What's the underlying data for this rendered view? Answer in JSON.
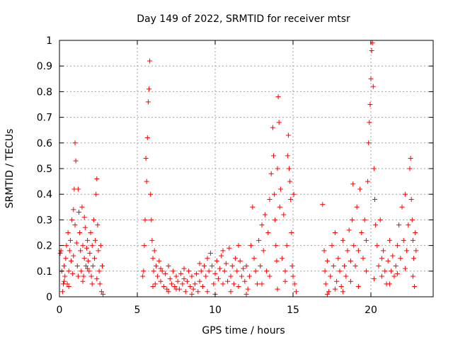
{
  "chart_data": {
    "type": "scatter",
    "title": "Day 149 of 2022, SRMTID for receiver mtsr",
    "xlabel": "GPS time / hours",
    "ylabel": "SRMTID / TECUs",
    "xlim": [
      0,
      24
    ],
    "ylim": [
      0,
      1
    ],
    "xticks": [
      0,
      5,
      10,
      15,
      20
    ],
    "xtick_labels": [
      "0",
      "5",
      "10",
      "15",
      "20"
    ],
    "yticks": [
      0,
      0.1,
      0.2,
      0.3,
      0.4,
      0.5,
      0.6,
      0.7,
      0.8,
      0.9,
      1
    ],
    "ytick_labels": [
      "0",
      "0.1",
      "0.2",
      "0.3",
      "0.4",
      "0.5",
      "0.6",
      "0.7",
      "0.8",
      "0.9",
      "1"
    ],
    "grid": true,
    "marker": "+",
    "color": "#ff0000",
    "series": [
      {
        "name": "SRMTID",
        "points": [
          [
            0.05,
            0.17
          ],
          [
            0.1,
            0.18
          ],
          [
            0.15,
            0.1
          ],
          [
            0.2,
            0.02
          ],
          [
            0.25,
            0.05
          ],
          [
            0.3,
            0.12
          ],
          [
            0.35,
            0.08
          ],
          [
            0.4,
            0.15
          ],
          [
            0.45,
            0.2
          ],
          [
            0.5,
            0.05
          ],
          [
            0.55,
            0.25
          ],
          [
            0.6,
            0.1
          ],
          [
            0.65,
            0.18
          ],
          [
            0.7,
            0.22
          ],
          [
            0.75,
            0.14
          ],
          [
            0.8,
            0.3
          ],
          [
            0.85,
            0.09
          ],
          [
            0.9,
            0.34
          ],
          [
            0.95,
            0.42
          ],
          [
            1.0,
            0.6
          ],
          [
            1.05,
            0.53
          ],
          [
            1.1,
            0.21
          ],
          [
            1.15,
            0.12
          ],
          [
            1.2,
            0.42
          ],
          [
            1.25,
            0.33
          ],
          [
            1.3,
            0.25
          ],
          [
            1.35,
            0.18
          ],
          [
            1.4,
            0.1
          ],
          [
            1.45,
            0.35
          ],
          [
            1.5,
            0.2
          ],
          [
            1.55,
            0.08
          ],
          [
            1.6,
            0.15
          ],
          [
            1.65,
            0.27
          ],
          [
            1.7,
            0.12
          ],
          [
            1.75,
            0.19
          ],
          [
            1.8,
            0.22
          ],
          [
            1.85,
            0.14
          ],
          [
            1.9,
            0.1
          ],
          [
            1.95,
            0.17
          ],
          [
            2.0,
            0.25
          ],
          [
            2.05,
            0.08
          ],
          [
            2.1,
            0.2
          ],
          [
            2.15,
            0.12
          ],
          [
            2.2,
            0.3
          ],
          [
            2.25,
            0.15
          ],
          [
            2.3,
            0.22
          ],
          [
            2.35,
            0.4
          ],
          [
            2.4,
            0.46
          ],
          [
            2.45,
            0.28
          ],
          [
            2.5,
            0.18
          ],
          [
            2.55,
            0.1
          ],
          [
            2.6,
            0.05
          ],
          [
            2.65,
            0.2
          ],
          [
            2.7,
            0.02
          ],
          [
            2.75,
            0.12
          ],
          [
            2.8,
            0.01
          ],
          [
            0.3,
            0.06
          ],
          [
            0.6,
            0.04
          ],
          [
            0.9,
            0.16
          ],
          [
            1.2,
            0.08
          ],
          [
            1.5,
            0.06
          ],
          [
            1.8,
            0.11
          ],
          [
            2.1,
            0.05
          ],
          [
            2.4,
            0.07
          ],
          [
            1.0,
            0.28
          ],
          [
            1.6,
            0.31
          ],
          [
            5.35,
            0.08
          ],
          [
            5.4,
            0.1
          ],
          [
            5.45,
            0.2
          ],
          [
            5.5,
            0.3
          ],
          [
            5.55,
            0.54
          ],
          [
            5.6,
            0.45
          ],
          [
            5.65,
            0.62
          ],
          [
            5.7,
            0.76
          ],
          [
            5.75,
            0.81
          ],
          [
            5.8,
            0.92
          ],
          [
            5.85,
            0.4
          ],
          [
            5.9,
            0.3
          ],
          [
            5.95,
            0.22
          ],
          [
            6.0,
            0.15
          ],
          [
            6.05,
            0.1
          ],
          [
            6.1,
            0.18
          ],
          [
            6.15,
            0.05
          ],
          [
            6.2,
            0.12
          ],
          [
            6.3,
            0.08
          ],
          [
            6.4,
            0.14
          ],
          [
            6.5,
            0.06
          ],
          [
            6.6,
            0.1
          ],
          [
            6.7,
            0.04
          ],
          [
            6.8,
            0.09
          ],
          [
            6.9,
            0.03
          ],
          [
            7.0,
            0.12
          ],
          [
            7.1,
            0.07
          ],
          [
            7.2,
            0.05
          ],
          [
            7.3,
            0.1
          ],
          [
            7.4,
            0.04
          ],
          [
            7.5,
            0.08
          ],
          [
            7.6,
            0.06
          ],
          [
            7.7,
            0.03
          ],
          [
            7.8,
            0.09
          ],
          [
            7.9,
            0.05
          ],
          [
            8.0,
            0.07
          ],
          [
            8.1,
            0.02
          ],
          [
            8.2,
            0.06
          ],
          [
            8.3,
            0.1
          ],
          [
            8.4,
            0.04
          ],
          [
            8.5,
            0.08
          ],
          [
            8.6,
            0.03
          ],
          [
            8.7,
            0.05
          ],
          [
            8.8,
            0.09
          ],
          [
            8.9,
            0.02
          ],
          [
            9.0,
            0.06
          ],
          [
            9.1,
            0.1
          ],
          [
            9.2,
            0.04
          ],
          [
            9.3,
            0.12
          ],
          [
            9.4,
            0.08
          ],
          [
            9.5,
            0.15
          ],
          [
            9.6,
            0.1
          ],
          [
            9.7,
            0.17
          ],
          [
            9.8,
            0.12
          ],
          [
            9.9,
            0.05
          ],
          [
            10.0,
            0.09
          ],
          [
            10.1,
            0.14
          ],
          [
            10.2,
            0.07
          ],
          [
            10.3,
            0.11
          ],
          [
            10.4,
            0.16
          ],
          [
            10.5,
            0.05
          ],
          [
            10.6,
            0.1
          ],
          [
            10.7,
            0.13
          ],
          [
            10.8,
            0.06
          ],
          [
            10.9,
            0.19
          ],
          [
            11.0,
            0.08
          ],
          [
            11.1,
            0.12
          ],
          [
            11.2,
            0.05
          ],
          [
            11.3,
            0.15
          ],
          [
            11.4,
            0.1
          ],
          [
            11.5,
            0.04
          ],
          [
            11.6,
            0.14
          ],
          [
            11.7,
            0.08
          ],
          [
            11.8,
            0.11
          ],
          [
            11.9,
            0.06
          ],
          [
            12.0,
            0.12
          ],
          [
            12.1,
            0.03
          ],
          [
            12.2,
            0.08
          ],
          [
            12.3,
            0.2
          ],
          [
            12.4,
            0.35
          ],
          [
            12.5,
            0.15
          ],
          [
            12.6,
            0.1
          ],
          [
            12.7,
            0.05
          ],
          [
            12.8,
            0.22
          ],
          [
            12.9,
            0.12
          ],
          [
            13.0,
            0.28
          ],
          [
            13.1,
            0.18
          ],
          [
            13.2,
            0.32
          ],
          [
            13.3,
            0.1
          ],
          [
            13.4,
            0.25
          ],
          [
            13.5,
            0.38
          ],
          [
            13.6,
            0.48
          ],
          [
            13.7,
            0.66
          ],
          [
            13.75,
            0.55
          ],
          [
            13.8,
            0.4
          ],
          [
            13.85,
            0.3
          ],
          [
            13.9,
            0.2
          ],
          [
            13.95,
            0.14
          ],
          [
            14.0,
            0.5
          ],
          [
            14.05,
            0.78
          ],
          [
            14.1,
            0.68
          ],
          [
            14.15,
            0.35
          ],
          [
            14.2,
            0.42
          ],
          [
            14.3,
            0.15
          ],
          [
            14.4,
            0.32
          ],
          [
            14.5,
            0.1
          ],
          [
            14.6,
            0.2
          ],
          [
            14.65,
            0.55
          ],
          [
            14.7,
            0.63
          ],
          [
            14.75,
            0.5
          ],
          [
            14.8,
            0.45
          ],
          [
            14.85,
            0.38
          ],
          [
            14.9,
            0.25
          ],
          [
            14.95,
            0.12
          ],
          [
            15.0,
            0.08
          ],
          [
            15.05,
            0.4
          ],
          [
            15.1,
            0.05
          ],
          [
            15.2,
            0.02
          ],
          [
            6.0,
            0.04
          ],
          [
            6.5,
            0.11
          ],
          [
            7.0,
            0.02
          ],
          [
            7.5,
            0.03
          ],
          [
            8.0,
            0.11
          ],
          [
            8.5,
            0.01
          ],
          [
            9.0,
            0.13
          ],
          [
            9.5,
            0.02
          ],
          [
            10.0,
            0.01
          ],
          [
            10.5,
            0.18
          ],
          [
            11.0,
            0.02
          ],
          [
            11.5,
            0.2
          ],
          [
            12.0,
            0.01
          ],
          [
            13.0,
            0.05
          ],
          [
            13.5,
            0.08
          ],
          [
            14.0,
            0.03
          ],
          [
            14.5,
            0.06
          ],
          [
            16.9,
            0.36
          ],
          [
            17.0,
            0.18
          ],
          [
            17.05,
            0.1
          ],
          [
            17.1,
            0.05
          ],
          [
            17.2,
            0.14
          ],
          [
            17.3,
            0.02
          ],
          [
            17.4,
            0.08
          ],
          [
            17.5,
            0.2
          ],
          [
            17.6,
            0.12
          ],
          [
            17.7,
            0.25
          ],
          [
            17.8,
            0.06
          ],
          [
            17.9,
            0.15
          ],
          [
            18.0,
            0.1
          ],
          [
            18.1,
            0.04
          ],
          [
            18.2,
            0.22
          ],
          [
            18.3,
            0.12
          ],
          [
            18.4,
            0.08
          ],
          [
            18.5,
            0.18
          ],
          [
            18.6,
            0.26
          ],
          [
            18.7,
            0.14
          ],
          [
            18.8,
            0.3
          ],
          [
            18.85,
            0.44
          ],
          [
            18.9,
            0.2
          ],
          [
            19.0,
            0.12
          ],
          [
            19.1,
            0.35
          ],
          [
            19.2,
            0.18
          ],
          [
            19.3,
            0.42
          ],
          [
            19.4,
            0.25
          ],
          [
            19.5,
            0.15
          ],
          [
            19.6,
            0.3
          ],
          [
            19.7,
            0.22
          ],
          [
            19.8,
            0.45
          ],
          [
            19.85,
            0.6
          ],
          [
            19.9,
            0.68
          ],
          [
            19.95,
            0.75
          ],
          [
            20.0,
            0.85
          ],
          [
            20.05,
            0.96
          ],
          [
            20.1,
            0.99
          ],
          [
            20.15,
            0.82
          ],
          [
            20.2,
            0.5
          ],
          [
            20.25,
            0.38
          ],
          [
            20.3,
            0.28
          ],
          [
            20.4,
            0.2
          ],
          [
            20.5,
            0.12
          ],
          [
            20.6,
            0.3
          ],
          [
            20.7,
            0.08
          ],
          [
            20.8,
            0.18
          ],
          [
            20.9,
            0.1
          ],
          [
            21.0,
            0.05
          ],
          [
            21.1,
            0.14
          ],
          [
            21.2,
            0.22
          ],
          [
            21.3,
            0.1
          ],
          [
            21.4,
            0.16
          ],
          [
            21.5,
            0.08
          ],
          [
            21.6,
            0.12
          ],
          [
            21.7,
            0.2
          ],
          [
            21.8,
            0.28
          ],
          [
            21.9,
            0.15
          ],
          [
            22.0,
            0.35
          ],
          [
            22.1,
            0.22
          ],
          [
            22.2,
            0.4
          ],
          [
            22.3,
            0.18
          ],
          [
            22.4,
            0.28
          ],
          [
            22.5,
            0.5
          ],
          [
            22.55,
            0.54
          ],
          [
            22.6,
            0.38
          ],
          [
            22.65,
            0.3
          ],
          [
            22.7,
            0.22
          ],
          [
            22.75,
            0.15
          ],
          [
            22.8,
            0.04
          ],
          [
            22.85,
            0.25
          ],
          [
            22.9,
            0.18
          ],
          [
            17.2,
            0.01
          ],
          [
            17.7,
            0.03
          ],
          [
            18.2,
            0.02
          ],
          [
            18.7,
            0.06
          ],
          [
            19.2,
            0.04
          ],
          [
            19.7,
            0.1
          ],
          [
            20.2,
            0.07
          ],
          [
            20.7,
            0.15
          ],
          [
            21.2,
            0.05
          ],
          [
            21.7,
            0.09
          ],
          [
            22.2,
            0.11
          ],
          [
            22.7,
            0.08
          ]
        ]
      }
    ]
  }
}
